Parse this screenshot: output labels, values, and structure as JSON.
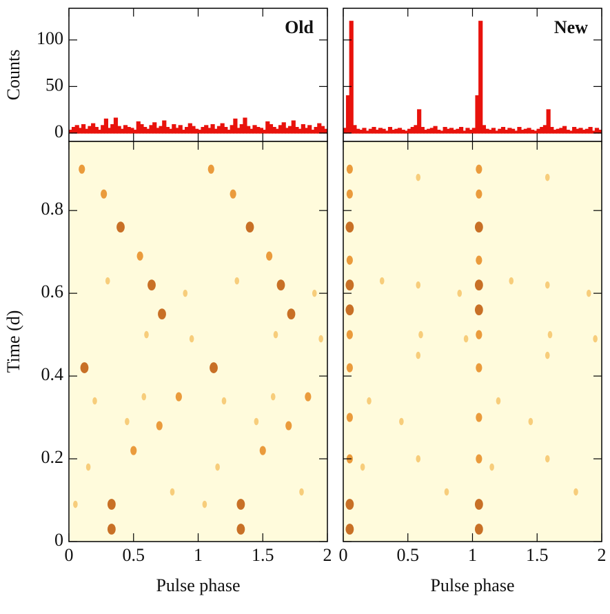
{
  "chart_data": [
    {
      "type": "histogram",
      "annotation": "Old",
      "ylabel": "Counts",
      "bins": [
        0,
        0.025,
        0.05,
        0.075,
        0.1,
        0.125,
        0.15,
        0.175,
        0.2,
        0.225,
        0.25,
        0.275,
        0.3,
        0.325,
        0.35,
        0.375,
        0.4,
        0.425,
        0.45,
        0.475,
        0.5,
        0.525,
        0.55,
        0.575,
        0.6,
        0.625,
        0.65,
        0.675,
        0.7,
        0.725,
        0.75,
        0.775,
        0.8,
        0.825,
        0.85,
        0.875,
        0.9,
        0.925,
        0.95,
        0.975,
        1,
        1.025,
        1.05,
        1.075,
        1.1,
        1.125,
        1.15,
        1.175,
        1.2,
        1.225,
        1.25,
        1.275,
        1.3,
        1.325,
        1.35,
        1.375,
        1.4,
        1.425,
        1.45,
        1.475,
        1.5,
        1.525,
        1.55,
        1.575,
        1.6,
        1.625,
        1.65,
        1.675,
        1.7,
        1.725,
        1.75,
        1.775,
        1.8,
        1.825,
        1.85,
        1.875,
        1.9,
        1.925,
        1.95,
        1.975,
        2
      ],
      "values": [
        3,
        6,
        8,
        5,
        9,
        4,
        7,
        10,
        6,
        3,
        8,
        15,
        5,
        9,
        16,
        7,
        4,
        8,
        6,
        5,
        3,
        12,
        9,
        6,
        4,
        8,
        11,
        5,
        7,
        13,
        6,
        4,
        9,
        5,
        8,
        3,
        6,
        10,
        7,
        4,
        3,
        6,
        8,
        5,
        9,
        4,
        7,
        10,
        6,
        3,
        8,
        15,
        5,
        9,
        16,
        7,
        4,
        8,
        6,
        5,
        3,
        12,
        9,
        6,
        4,
        8,
        11,
        5,
        7,
        13,
        6,
        4,
        9,
        5,
        8,
        3,
        6,
        10,
        7,
        4
      ],
      "color": "#e8120c",
      "xlim": [
        0,
        2
      ],
      "xticks": [
        0,
        0.5,
        1,
        1.5,
        2
      ],
      "xtick_labels": false,
      "ylim": [
        -9,
        134
      ],
      "yticks": [
        0,
        50,
        100
      ],
      "ytick_labels": true
    },
    {
      "type": "heatmap",
      "xlabel": "Pulse phase",
      "ylabel": "Time (d)",
      "x": [
        0.33,
        1.33,
        0.33,
        1.33,
        0.12,
        1.12,
        0.72,
        1.72,
        0.64,
        1.64,
        0.55,
        1.55,
        0.4,
        1.4,
        0.27,
        1.27,
        0.1,
        1.1,
        0.5,
        1.5,
        0.85,
        1.85,
        0.7,
        1.7,
        0.05,
        0.2,
        0.6,
        0.9,
        0.45,
        0.15,
        0.8,
        0.3,
        0.95,
        0.58,
        1.05,
        1.2,
        1.6,
        1.9,
        1.45,
        1.15,
        1.8,
        1.3,
        1.95,
        1.58
      ],
      "y": [
        0.03,
        0.03,
        0.09,
        0.09,
        0.42,
        0.42,
        0.55,
        0.55,
        0.62,
        0.62,
        0.69,
        0.69,
        0.76,
        0.76,
        0.84,
        0.84,
        0.9,
        0.9,
        0.22,
        0.22,
        0.35,
        0.35,
        0.28,
        0.28,
        0.09,
        0.34,
        0.5,
        0.6,
        0.29,
        0.18,
        0.12,
        0.63,
        0.49,
        0.35,
        0.09,
        0.34,
        0.5,
        0.6,
        0.29,
        0.18,
        0.12,
        0.63,
        0.49,
        0.35
      ],
      "values": [
        3,
        3,
        3,
        3,
        3,
        3,
        3,
        3,
        3,
        3,
        2,
        2,
        3,
        3,
        2,
        2,
        2,
        2,
        2,
        2,
        2,
        2,
        2,
        2,
        1,
        1,
        1,
        1,
        1,
        1,
        1,
        1,
        1,
        1,
        1,
        1,
        1,
        1,
        1,
        1,
        1,
        1,
        1,
        1
      ],
      "colormap": [
        "#f6c870",
        "#e8902a",
        "#c26012"
      ],
      "background": "#fffbdc",
      "xlim": [
        0,
        2
      ],
      "xticks": [
        0,
        0.5,
        1,
        1.5,
        2
      ],
      "xtick_labels": true,
      "ylim": [
        0,
        0.967
      ],
      "yticks": [
        0,
        0.2,
        0.4,
        0.6,
        0.8
      ],
      "ytick_labels": true
    },
    {
      "type": "histogram",
      "annotation": "New",
      "bins": [
        0,
        0.025,
        0.05,
        0.075,
        0.1,
        0.125,
        0.15,
        0.175,
        0.2,
        0.225,
        0.25,
        0.275,
        0.3,
        0.325,
        0.35,
        0.375,
        0.4,
        0.425,
        0.45,
        0.475,
        0.5,
        0.525,
        0.55,
        0.575,
        0.6,
        0.625,
        0.65,
        0.675,
        0.7,
        0.725,
        0.75,
        0.775,
        0.8,
        0.825,
        0.85,
        0.875,
        0.9,
        0.925,
        0.95,
        0.975,
        1,
        1.025,
        1.05,
        1.075,
        1.1,
        1.125,
        1.15,
        1.175,
        1.2,
        1.225,
        1.25,
        1.275,
        1.3,
        1.325,
        1.35,
        1.375,
        1.4,
        1.425,
        1.45,
        1.475,
        1.5,
        1.525,
        1.55,
        1.575,
        1.6,
        1.625,
        1.65,
        1.675,
        1.7,
        1.725,
        1.75,
        1.775,
        1.8,
        1.825,
        1.85,
        1.875,
        1.9,
        1.925,
        1.95,
        1.975,
        2
      ],
      "values": [
        5,
        40,
        120,
        8,
        4,
        3,
        5,
        2,
        4,
        6,
        3,
        5,
        4,
        2,
        6,
        3,
        4,
        5,
        3,
        2,
        4,
        6,
        8,
        25,
        6,
        3,
        4,
        5,
        7,
        3,
        2,
        6,
        4,
        5,
        3,
        4,
        6,
        2,
        5,
        3,
        5,
        40,
        120,
        8,
        4,
        3,
        5,
        2,
        4,
        6,
        3,
        5,
        4,
        2,
        6,
        3,
        4,
        5,
        3,
        2,
        4,
        6,
        8,
        25,
        6,
        3,
        4,
        5,
        7,
        3,
        2,
        6,
        4,
        5,
        3,
        4,
        6,
        2,
        5,
        3
      ],
      "color": "#e8120c",
      "xlim": [
        0,
        2
      ],
      "xticks": [
        0,
        0.5,
        1,
        1.5,
        2
      ],
      "xtick_labels": false,
      "ylim": [
        -9,
        134
      ],
      "yticks": [
        0,
        50,
        100
      ],
      "ytick_labels": false
    },
    {
      "type": "heatmap",
      "xlabel": "Pulse phase",
      "x": [
        0.05,
        0.05,
        0.05,
        0.05,
        0.05,
        0.05,
        0.05,
        0.05,
        0.05,
        0.05,
        0.05,
        0.05,
        1.05,
        1.05,
        1.05,
        1.05,
        1.05,
        1.05,
        1.05,
        1.05,
        1.05,
        1.05,
        1.05,
        1.05,
        0.58,
        0.58,
        0.58,
        0.58,
        1.58,
        1.58,
        1.58,
        1.58,
        0.2,
        0.6,
        0.9,
        0.45,
        0.15,
        0.8,
        0.3,
        0.95,
        1.2,
        1.6,
        1.9,
        1.45,
        1.15,
        1.8,
        1.3,
        1.95
      ],
      "y": [
        0.03,
        0.09,
        0.2,
        0.3,
        0.42,
        0.5,
        0.56,
        0.62,
        0.68,
        0.76,
        0.84,
        0.9,
        0.03,
        0.09,
        0.2,
        0.3,
        0.42,
        0.5,
        0.56,
        0.62,
        0.68,
        0.76,
        0.84,
        0.9,
        0.2,
        0.45,
        0.62,
        0.88,
        0.2,
        0.45,
        0.62,
        0.88,
        0.34,
        0.5,
        0.6,
        0.29,
        0.18,
        0.12,
        0.63,
        0.49,
        0.34,
        0.5,
        0.6,
        0.29,
        0.18,
        0.12,
        0.63,
        0.49
      ],
      "values": [
        3,
        3,
        2,
        2,
        2,
        2,
        3,
        3,
        2,
        3,
        2,
        2,
        3,
        3,
        2,
        2,
        2,
        2,
        3,
        3,
        2,
        3,
        2,
        2,
        1,
        1,
        1,
        1,
        1,
        1,
        1,
        1,
        1,
        1,
        1,
        1,
        1,
        1,
        1,
        1,
        1,
        1,
        1,
        1,
        1,
        1,
        1,
        1
      ],
      "colormap": [
        "#f6c870",
        "#e8902a",
        "#c26012"
      ],
      "background": "#fffbdc",
      "xlim": [
        0,
        2
      ],
      "xticks": [
        0,
        0.5,
        1,
        1.5,
        2
      ],
      "xtick_labels": true,
      "ylim": [
        0,
        0.967
      ],
      "yticks": [
        0,
        0.2,
        0.4,
        0.6,
        0.8
      ],
      "ytick_labels": false
    }
  ]
}
